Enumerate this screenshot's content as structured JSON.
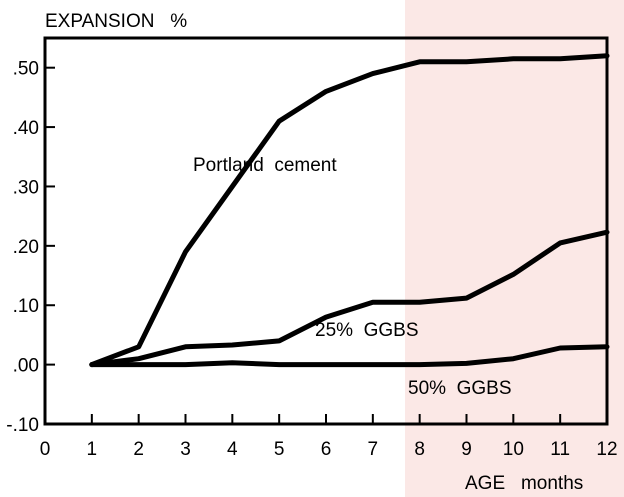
{
  "colors": {
    "background": "#ffffff",
    "tint": "#fbe8e6",
    "ink": "#000000"
  },
  "chart_data": {
    "type": "line",
    "title": "",
    "ylabel": "EXPANSION   %",
    "xlabel": "AGE   months",
    "xlim": [
      0,
      12
    ],
    "ylim": [
      -0.1,
      0.55
    ],
    "x_ticks": [
      "0",
      "1",
      "2",
      "3",
      "4",
      "5",
      "6",
      "7",
      "8",
      "9",
      "10",
      "11",
      "12"
    ],
    "y_ticks": [
      "-.10",
      ".00",
      ".10",
      ".20",
      ".30",
      ".40",
      ".50"
    ],
    "grid": false,
    "legend": "none",
    "series": [
      {
        "name": "Portland  cement",
        "x": [
          1,
          2,
          3,
          4,
          5,
          6,
          7,
          8,
          9,
          10,
          11,
          12
        ],
        "y": [
          0.0,
          0.03,
          0.19,
          0.3,
          0.41,
          0.46,
          0.49,
          0.51,
          0.51,
          0.515,
          0.515,
          0.52
        ]
      },
      {
        "name": "25%  GGBS",
        "x": [
          1,
          2,
          3,
          4,
          5,
          6,
          7,
          8,
          9,
          10,
          11,
          12
        ],
        "y": [
          0.0,
          0.01,
          0.03,
          0.033,
          0.04,
          0.08,
          0.105,
          0.105,
          0.112,
          0.152,
          0.205,
          0.223
        ]
      },
      {
        "name": "50%  GGBS",
        "x": [
          1,
          2,
          3,
          4,
          5,
          6,
          7,
          8,
          9,
          10,
          11,
          12
        ],
        "y": [
          0.0,
          0.0,
          0.0,
          0.003,
          0.0,
          0.0,
          0.0,
          0.0,
          0.002,
          0.01,
          0.028,
          0.03
        ]
      }
    ]
  }
}
